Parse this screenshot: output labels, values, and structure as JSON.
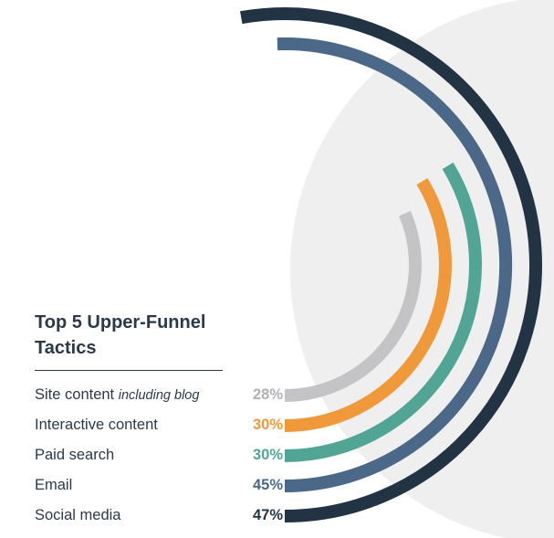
{
  "chart_data": {
    "type": "radial-bar",
    "title": "Top 5 Upper-Funnel Tactics",
    "value_max": 47,
    "categories": [
      {
        "label": "Site content",
        "note": "including blog",
        "value": 28,
        "display": "28%",
        "color": "#c4c3c6"
      },
      {
        "label": "Interactive content",
        "note": "",
        "value": 30,
        "display": "30%",
        "color": "#f0993b"
      },
      {
        "label": "Paid search",
        "note": "",
        "value": 30,
        "display": "30%",
        "color": "#52a495"
      },
      {
        "label": "Email",
        "note": "",
        "value": 45,
        "display": "45%",
        "color": "#4b6888"
      },
      {
        "label": "Social media",
        "note": "",
        "value": 47,
        "display": "47%",
        "color": "#223444"
      }
    ]
  },
  "background": {
    "shape_color": "#f0efef"
  }
}
